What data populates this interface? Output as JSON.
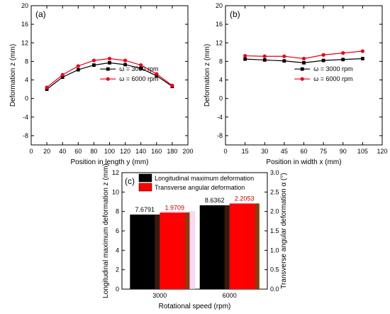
{
  "chart_data": [
    {
      "type": "line",
      "panel_label": "(a)",
      "xlabel": "Position in length y (mm)",
      "ylabel": "Deformation z (mm)",
      "xlim": [
        0,
        200
      ],
      "ylim": [
        -10,
        20
      ],
      "xticks": [
        0,
        20,
        40,
        60,
        80,
        100,
        120,
        140,
        160,
        180,
        200
      ],
      "yticks": [
        -8,
        -4,
        0,
        4,
        8,
        12,
        16,
        20
      ],
      "legend_position": "center",
      "x": [
        20,
        40,
        60,
        80,
        100,
        120,
        140,
        160,
        180
      ],
      "series": [
        {
          "name": "ω = 3000 rpm",
          "color": "#000000",
          "marker": "square",
          "values": [
            2.0,
            4.6,
            6.2,
            7.2,
            7.7,
            7.3,
            6.5,
            4.9,
            2.6
          ]
        },
        {
          "name": "ω = 6000 rpm",
          "color": "#e8001c",
          "marker": "circle",
          "values": [
            2.4,
            5.1,
            7.0,
            8.2,
            8.6,
            8.2,
            7.2,
            5.3,
            2.8
          ]
        }
      ]
    },
    {
      "type": "line",
      "panel_label": "(b)",
      "xlabel": "Position in width x (mm)",
      "ylabel": "Deformation z (mm)",
      "xlim": [
        0,
        120
      ],
      "ylim": [
        -10,
        20
      ],
      "xticks": [
        0,
        15,
        30,
        45,
        60,
        75,
        90,
        105,
        120
      ],
      "yticks": [
        -8,
        -4,
        0,
        4,
        8,
        12,
        16,
        20
      ],
      "legend_position": "center",
      "x": [
        15,
        30,
        45,
        60,
        75,
        90,
        105
      ],
      "series": [
        {
          "name": "ω = 3000 rpm",
          "color": "#000000",
          "marker": "square",
          "values": [
            8.5,
            8.3,
            8.1,
            7.7,
            8.2,
            8.4,
            8.6
          ]
        },
        {
          "name": "ω = 6000 rpm",
          "color": "#e8001c",
          "marker": "circle",
          "values": [
            9.2,
            9.1,
            9.1,
            8.6,
            9.4,
            9.8,
            10.2
          ]
        }
      ]
    },
    {
      "type": "bar",
      "panel_label": "(c)",
      "xlabel": "Rotational speed (rpm)",
      "ylabel": "Longitudinal maximum deformation z (mm)",
      "y2label": "Transverse angular deformation α (°)",
      "categories": [
        "3000",
        "6000"
      ],
      "ylim": [
        0,
        12
      ],
      "y2lim": [
        0,
        3.0
      ],
      "yticks": [
        0,
        2,
        4,
        6,
        8,
        10,
        12
      ],
      "y2ticks": [
        0.0,
        0.5,
        1.0,
        1.5,
        2.0,
        2.5,
        3.0
      ],
      "legend_position": "top-left",
      "series": [
        {
          "name": "Longitudinal maximum deformation",
          "color": "#000000",
          "axis": "left",
          "values": [
            7.6791,
            8.6362
          ],
          "labels": [
            "7.6791",
            "8.6362"
          ]
        },
        {
          "name": "Transverse angular deformation",
          "color": "#ff0000",
          "axis": "right",
          "values": [
            1.9709,
            2.2053
          ],
          "labels": [
            "1.9709",
            "2.2053"
          ]
        }
      ]
    }
  ]
}
